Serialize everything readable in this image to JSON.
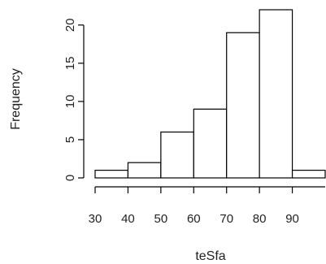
{
  "chart_data": {
    "type": "bar",
    "title": "",
    "xlabel": "teSfa",
    "ylabel": "Frequency",
    "bins": [
      {
        "start": 30,
        "end": 40,
        "count": 1
      },
      {
        "start": 40,
        "end": 50,
        "count": 2
      },
      {
        "start": 50,
        "end": 60,
        "count": 6
      },
      {
        "start": 60,
        "end": 70,
        "count": 9
      },
      {
        "start": 70,
        "end": 80,
        "count": 19
      },
      {
        "start": 80,
        "end": 90,
        "count": 22
      },
      {
        "start": 90,
        "end": 100,
        "count": 1
      }
    ],
    "x_ticks": [
      30,
      40,
      50,
      60,
      70,
      80,
      90
    ],
    "y_ticks": [
      0,
      5,
      10,
      15,
      20
    ],
    "xlim": [
      30,
      100
    ],
    "ylim": [
      0,
      22
    ],
    "grid": false,
    "legend": "none"
  }
}
